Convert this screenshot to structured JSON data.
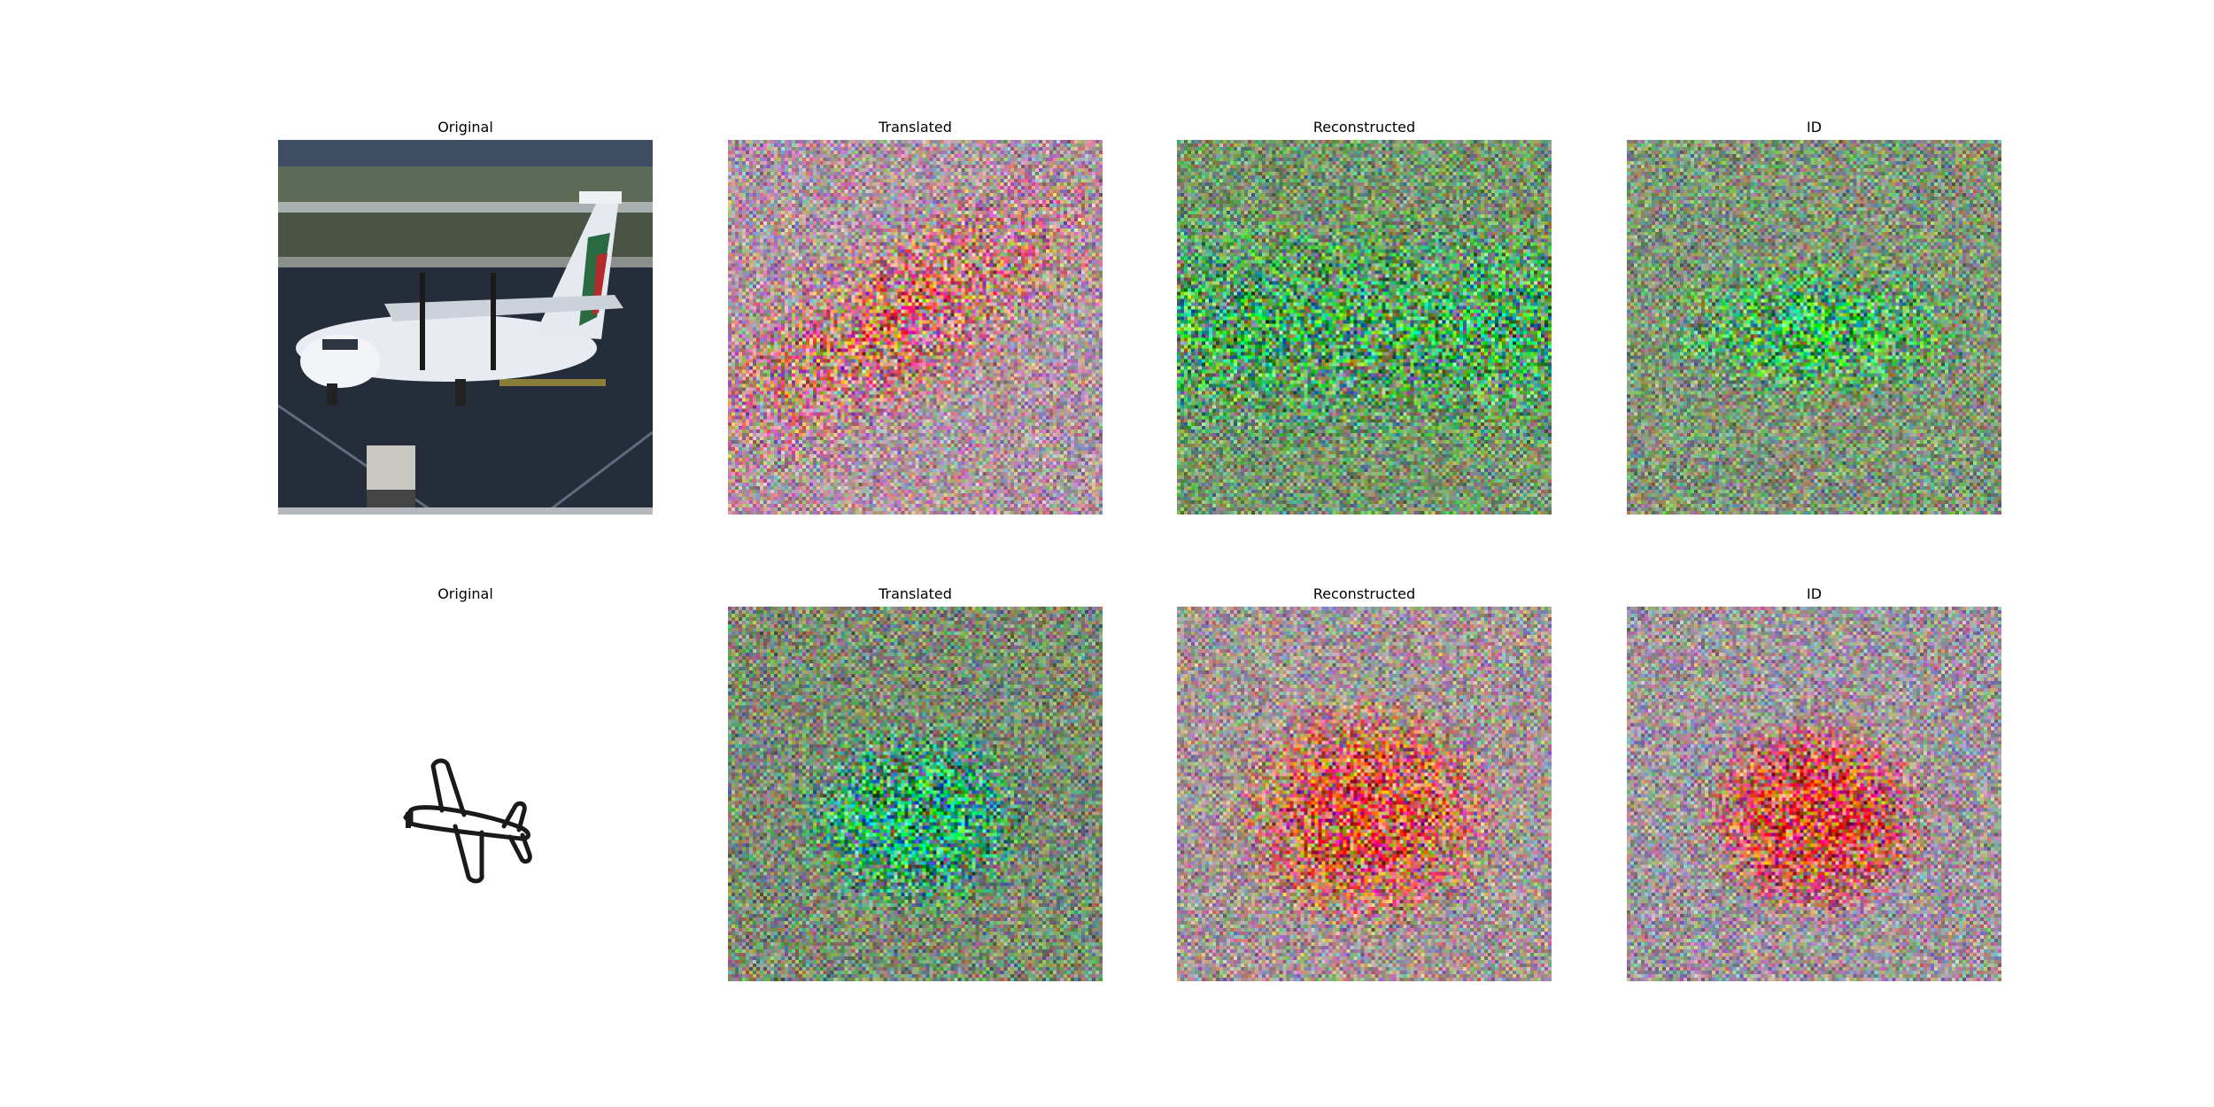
{
  "figure": {
    "rows": [
      {
        "panels": [
          {
            "title": "Original",
            "content": "photo-airplane"
          },
          {
            "title": "Translated",
            "content": "noise-pink"
          },
          {
            "title": "Reconstructed",
            "content": "noise-green"
          },
          {
            "title": "ID",
            "content": "noise-green-blob"
          }
        ]
      },
      {
        "panels": [
          {
            "title": "Original",
            "content": "sketch-airplane"
          },
          {
            "title": "Translated",
            "content": "noise-green-blob"
          },
          {
            "title": "Reconstructed",
            "content": "noise-red-blob"
          },
          {
            "title": "ID",
            "content": "noise-red-blob"
          }
        ]
      }
    ]
  }
}
